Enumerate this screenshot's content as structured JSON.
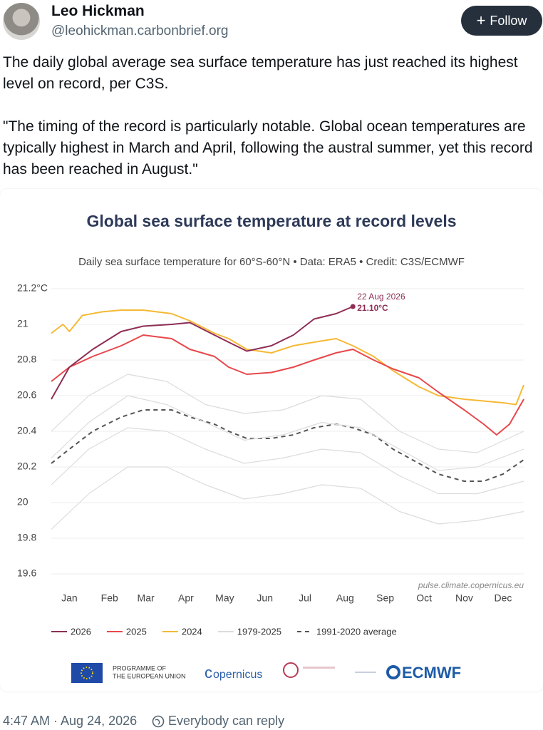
{
  "post": {
    "author": "Leo Hickman",
    "handle": "@leohickman.carbonbrief.org",
    "follow": "Follow",
    "text": [
      "The daily global average sea surface temperature has just reached its highest level on record, per C3S.",
      "\"The timing of the record is particularly notable. Global ocean temperatures are typically highest in March and April, following the austral summer, yet this record has been reached in August.\""
    ],
    "timestamp": "4:47 AM · Aug 24, 2026",
    "reply_setting": "Everybody can reply"
  },
  "chart_data": {
    "type": "line",
    "title": "Global sea surface temperature at record levels",
    "subtitle": "Daily sea surface temperature for 60°S-60°N • Data: ERA5 • Credit: C3S/ECMWF",
    "source": "pulse.climate.copernicus.eu",
    "annotations": [
      "22 Aug 2026",
      "21.10°C"
    ],
    "logos": [
      "PROGRAMME OF",
      "THE EUROPEAN UNION",
      "opernicus",
      "ECMWF"
    ],
    "xlim": [
      1,
      366
    ],
    "xticks": [
      {
        "value": 15,
        "label": "Jan"
      },
      {
        "value": 46,
        "label": "Feb"
      },
      {
        "value": 74,
        "label": "Mar"
      },
      {
        "value": 105,
        "label": "Apr"
      },
      {
        "value": 135,
        "label": "May"
      },
      {
        "value": 166,
        "label": "Jun"
      },
      {
        "value": 197,
        "label": "Jul"
      },
      {
        "value": 228,
        "label": "Aug"
      },
      {
        "value": 259,
        "label": "Sep"
      },
      {
        "value": 289,
        "label": "Oct"
      },
      {
        "value": 320,
        "label": "Nov"
      },
      {
        "value": 350,
        "label": "Dec"
      }
    ],
    "ylim": [
      19.6,
      21.2
    ],
    "yticks": [
      19.6,
      19.8,
      20,
      20.2,
      20.4,
      20.6,
      20.8,
      21,
      {
        "value": 21.2,
        "label": "21.2°C"
      }
    ],
    "grid": true,
    "series": [
      {
        "name": "2026",
        "color": "#8e2e55",
        "x": [
          1,
          15,
          33,
          55,
          72,
          94,
          108,
          127,
          138,
          152,
          171,
          188,
          204,
          221,
          234
        ],
        "values": [
          20.58,
          20.76,
          20.86,
          20.96,
          20.99,
          21.0,
          21.01,
          20.94,
          20.9,
          20.85,
          20.88,
          20.94,
          21.03,
          21.06,
          21.1
        ]
      },
      {
        "name": "2025",
        "color": "#e8474b",
        "x": [
          1,
          15,
          33,
          55,
          72,
          94,
          108,
          127,
          138,
          152,
          171,
          188,
          204,
          221,
          234,
          250,
          265,
          285,
          300,
          320,
          335,
          345,
          355,
          366
        ],
        "values": [
          20.68,
          20.76,
          20.82,
          20.88,
          20.94,
          20.92,
          20.86,
          20.82,
          20.76,
          20.72,
          20.73,
          20.76,
          20.8,
          20.84,
          20.86,
          20.8,
          20.75,
          20.7,
          20.62,
          20.52,
          20.44,
          20.38,
          20.44,
          20.58
        ]
      },
      {
        "name": "2024",
        "color": "#f5b935",
        "x": [
          1,
          10,
          15,
          25,
          40,
          55,
          72,
          94,
          108,
          127,
          138,
          152,
          171,
          188,
          204,
          221,
          234,
          250,
          265,
          285,
          300,
          320,
          335,
          350,
          360,
          366
        ],
        "values": [
          20.95,
          21.0,
          20.96,
          21.05,
          21.07,
          21.08,
          21.08,
          21.06,
          21.02,
          20.95,
          20.92,
          20.86,
          20.84,
          20.88,
          20.9,
          20.92,
          20.88,
          20.82,
          20.74,
          20.65,
          20.6,
          20.58,
          20.57,
          20.56,
          20.55,
          20.66
        ]
      },
      {
        "name": "1979-2025",
        "color": "#dcdcdc",
        "x": [
          1,
          30,
          60,
          90,
          120,
          150,
          180,
          210,
          240,
          270,
          300,
          330,
          366
        ],
        "values": [
          20.1,
          20.3,
          20.42,
          20.4,
          20.3,
          20.22,
          20.25,
          20.3,
          20.28,
          20.15,
          20.05,
          20.05,
          20.12
        ]
      },
      {
        "name": "1979-2025",
        "color": "#dcdcdc",
        "x": [
          1,
          30,
          60,
          90,
          120,
          150,
          180,
          210,
          240,
          270,
          300,
          330,
          366
        ],
        "values": [
          19.85,
          20.05,
          20.2,
          20.2,
          20.1,
          20.02,
          20.05,
          20.1,
          20.08,
          19.95,
          19.88,
          19.9,
          19.95
        ]
      },
      {
        "name": "1979-2025",
        "color": "#dcdcdc",
        "x": [
          1,
          30,
          60,
          90,
          120,
          150,
          180,
          210,
          240,
          270,
          300,
          330,
          366
        ],
        "values": [
          20.4,
          20.6,
          20.72,
          20.68,
          20.55,
          20.5,
          20.52,
          20.6,
          20.58,
          20.4,
          20.3,
          20.28,
          20.4
        ]
      },
      {
        "name": "1979-2025",
        "color": "#dcdcdc",
        "x": [
          1,
          30,
          60,
          90,
          120,
          150,
          180,
          210,
          240,
          270,
          300,
          330,
          366
        ],
        "values": [
          20.25,
          20.45,
          20.6,
          20.55,
          20.45,
          20.35,
          20.38,
          20.45,
          20.42,
          20.3,
          20.18,
          20.2,
          20.3
        ]
      },
      {
        "name": "1991-2020 average",
        "color": "#555555",
        "dashed": true,
        "x": [
          1,
          15,
          33,
          55,
          72,
          94,
          108,
          127,
          138,
          152,
          171,
          188,
          204,
          221,
          234,
          250,
          265,
          285,
          300,
          320,
          335,
          350,
          366
        ],
        "values": [
          20.22,
          20.3,
          20.4,
          20.48,
          20.52,
          20.52,
          20.48,
          20.44,
          20.4,
          20.36,
          20.36,
          20.38,
          20.42,
          20.44,
          20.42,
          20.38,
          20.3,
          20.22,
          20.16,
          20.12,
          20.12,
          20.16,
          20.24
        ]
      }
    ]
  }
}
